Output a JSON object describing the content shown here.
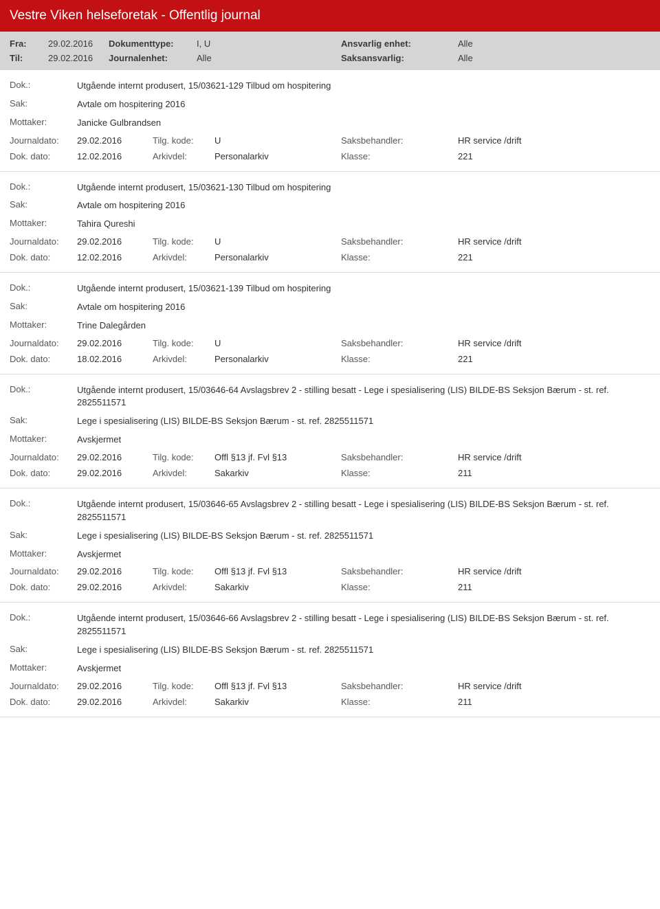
{
  "header": {
    "title": "Vestre Viken helseforetak - Offentlig journal"
  },
  "filter": {
    "fra_label": "Fra:",
    "fra_value": "29.02.2016",
    "til_label": "Til:",
    "til_value": "29.02.2016",
    "dokumenttype_label": "Dokumenttype:",
    "dokumenttype_value": "I, U",
    "journalenhet_label": "Journalenhet:",
    "journalenhet_value": "Alle",
    "ansvarlig_enhet_label": "Ansvarlig enhet:",
    "ansvarlig_enhet_value": "Alle",
    "saksansvarlig_label": "Saksansvarlig:",
    "saksansvarlig_value": "Alle"
  },
  "labels": {
    "dok": "Dok.:",
    "sak": "Sak:",
    "mottaker": "Mottaker:",
    "journaldato": "Journaldato:",
    "dok_dato": "Dok. dato:",
    "tilg_kode": "Tilg. kode:",
    "arkivdel": "Arkivdel:",
    "saksbehandler": "Saksbehandler:",
    "klasse": "Klasse:"
  },
  "entries": [
    {
      "dok": "Utgående internt produsert, 15/03621-129 Tilbud om hospitering",
      "sak": "Avtale om hospitering 2016",
      "mottaker": "Janicke Gulbrandsen",
      "journaldato": "29.02.2016",
      "tilg_kode": "U",
      "saksbehandler": "HR service /drift",
      "dok_dato": "12.02.2016",
      "arkivdel": "Personalarkiv",
      "klasse": "221"
    },
    {
      "dok": "Utgående internt produsert, 15/03621-130 Tilbud om hospitering",
      "sak": "Avtale om hospitering 2016",
      "mottaker": "Tahira Qureshi",
      "journaldato": "29.02.2016",
      "tilg_kode": "U",
      "saksbehandler": "HR service /drift",
      "dok_dato": "12.02.2016",
      "arkivdel": "Personalarkiv",
      "klasse": "221"
    },
    {
      "dok": "Utgående internt produsert, 15/03621-139 Tilbud om hospitering",
      "sak": "Avtale om hospitering 2016",
      "mottaker": "Trine Dalegården",
      "journaldato": "29.02.2016",
      "tilg_kode": "U",
      "saksbehandler": "HR service /drift",
      "dok_dato": "18.02.2016",
      "arkivdel": "Personalarkiv",
      "klasse": "221"
    },
    {
      "dok": "Utgående internt produsert, 15/03646-64 Avslagsbrev 2 - stilling besatt - Lege i spesialisering (LIS) BILDE-BS Seksjon Bærum - st. ref. 2825511571",
      "sak": "Lege i spesialisering (LIS) BILDE-BS Seksjon Bærum - st. ref. 2825511571",
      "mottaker": "Avskjermet",
      "journaldato": "29.02.2016",
      "tilg_kode": "Offl §13 jf. Fvl §13",
      "saksbehandler": "HR service /drift",
      "dok_dato": "29.02.2016",
      "arkivdel": "Sakarkiv",
      "klasse": "211"
    },
    {
      "dok": "Utgående internt produsert, 15/03646-65 Avslagsbrev 2 - stilling besatt - Lege i spesialisering (LIS) BILDE-BS Seksjon Bærum - st. ref. 2825511571",
      "sak": "Lege i spesialisering (LIS) BILDE-BS Seksjon Bærum - st. ref. 2825511571",
      "mottaker": "Avskjermet",
      "journaldato": "29.02.2016",
      "tilg_kode": "Offl §13 jf. Fvl §13",
      "saksbehandler": "HR service /drift",
      "dok_dato": "29.02.2016",
      "arkivdel": "Sakarkiv",
      "klasse": "211"
    },
    {
      "dok": "Utgående internt produsert, 15/03646-66 Avslagsbrev 2 - stilling besatt - Lege i spesialisering (LIS) BILDE-BS Seksjon Bærum - st. ref. 2825511571",
      "sak": "Lege i spesialisering (LIS) BILDE-BS Seksjon Bærum - st. ref. 2825511571",
      "mottaker": "Avskjermet",
      "journaldato": "29.02.2016",
      "tilg_kode": "Offl §13 jf. Fvl §13",
      "saksbehandler": "HR service /drift",
      "dok_dato": "29.02.2016",
      "arkivdel": "Sakarkiv",
      "klasse": "211"
    }
  ]
}
